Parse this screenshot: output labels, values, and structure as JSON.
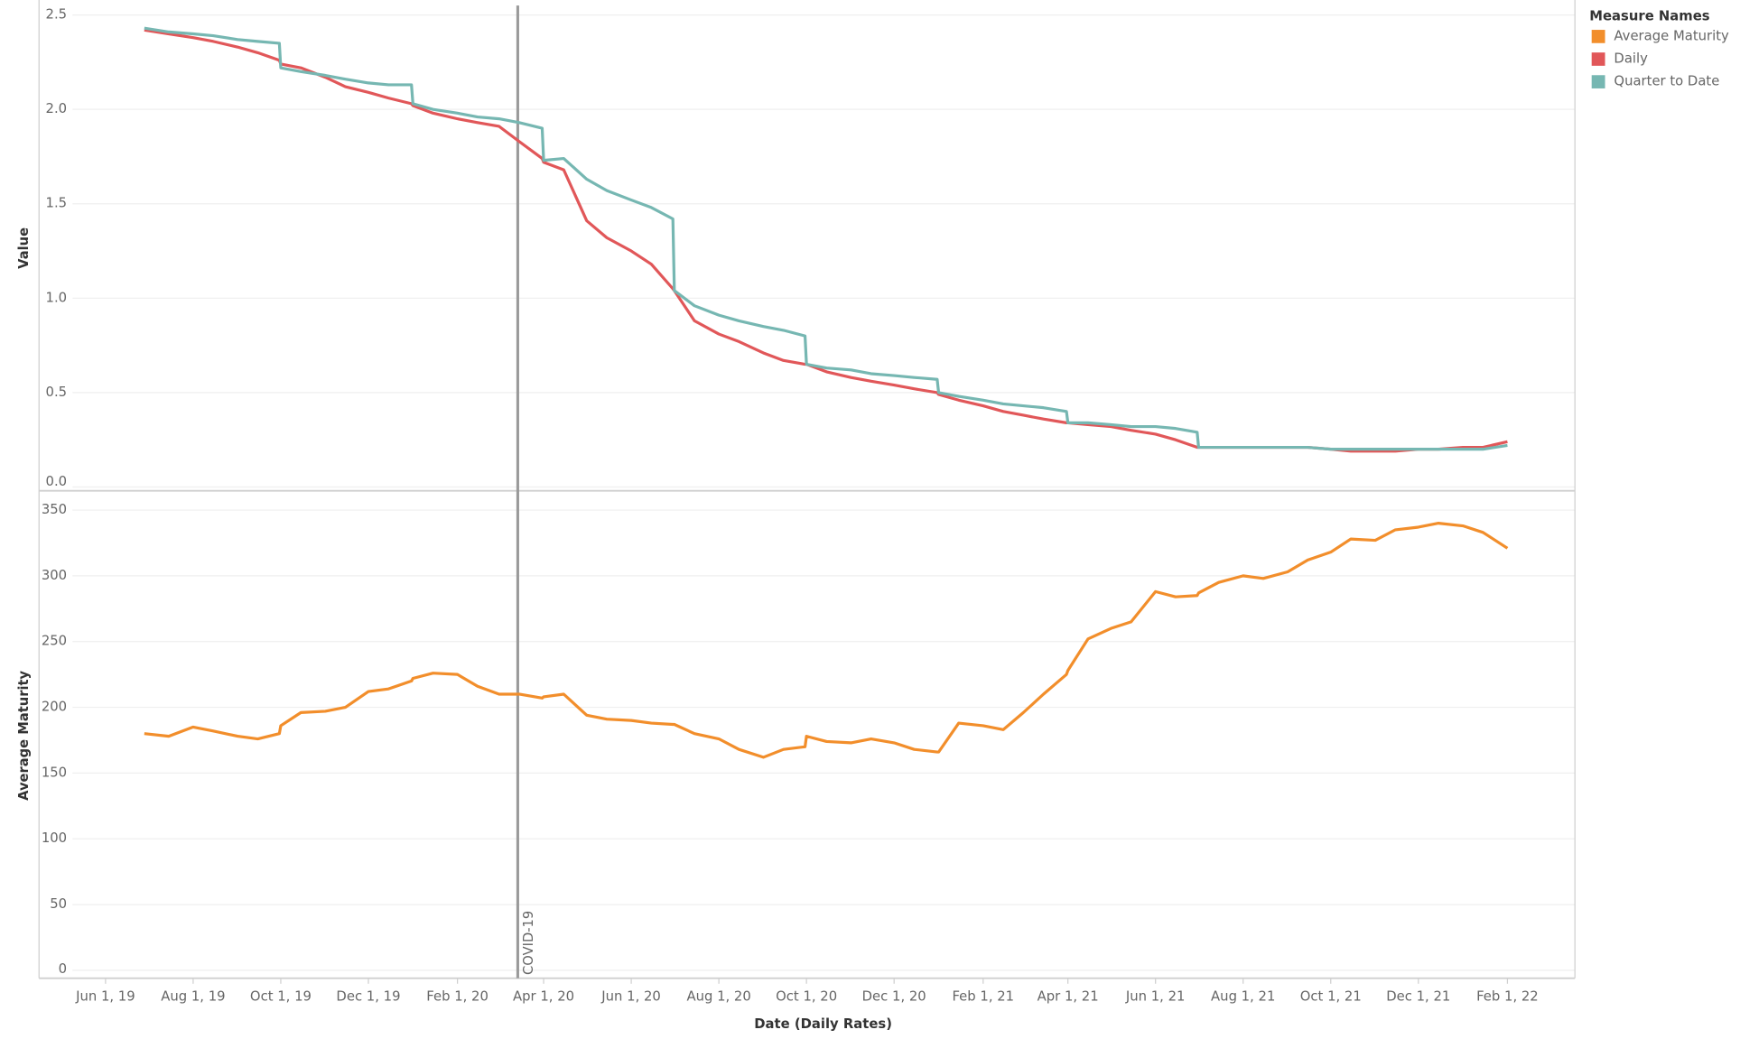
{
  "chart_data": {
    "type": "line",
    "x_label": "Date (Daily Rates)",
    "legend_title": "Measure Names",
    "xlim": [
      "2019-05-09",
      "2022-03-20"
    ],
    "xticks": [
      {
        "value": "2019-06-01",
        "label": "Jun 1, 19"
      },
      {
        "value": "2019-08-01",
        "label": "Aug 1, 19"
      },
      {
        "value": "2019-10-01",
        "label": "Oct 1, 19"
      },
      {
        "value": "2019-12-01",
        "label": "Dec 1, 19"
      },
      {
        "value": "2020-02-01",
        "label": "Feb 1, 20"
      },
      {
        "value": "2020-04-01",
        "label": "Apr 1, 20"
      },
      {
        "value": "2020-06-01",
        "label": "Jun 1, 20"
      },
      {
        "value": "2020-08-01",
        "label": "Aug 1, 20"
      },
      {
        "value": "2020-10-01",
        "label": "Oct 1, 20"
      },
      {
        "value": "2020-12-01",
        "label": "Dec 1, 20"
      },
      {
        "value": "2021-02-01",
        "label": "Feb 1, 21"
      },
      {
        "value": "2021-04-01",
        "label": "Apr 1, 21"
      },
      {
        "value": "2021-06-01",
        "label": "Jun 1, 21"
      },
      {
        "value": "2021-08-01",
        "label": "Aug 1, 21"
      },
      {
        "value": "2021-10-01",
        "label": "Oct 1, 21"
      },
      {
        "value": "2021-12-01",
        "label": "Dec 1, 21"
      },
      {
        "value": "2022-02-01",
        "label": "Feb 1, 22"
      }
    ],
    "annotations": [
      {
        "x": "2020-03-14",
        "text": "COVID-19"
      }
    ],
    "x": [
      "2019-06-28",
      "2019-07-15",
      "2019-08-01",
      "2019-08-15",
      "2019-09-01",
      "2019-09-15",
      "2019-09-30",
      "2019-10-01",
      "2019-10-15",
      "2019-11-01",
      "2019-11-15",
      "2019-12-01",
      "2019-12-15",
      "2019-12-31",
      "2020-01-01",
      "2020-01-15",
      "2020-02-01",
      "2020-02-15",
      "2020-03-01",
      "2020-03-15",
      "2020-03-31",
      "2020-04-01",
      "2020-04-15",
      "2020-05-01",
      "2020-05-15",
      "2020-06-01",
      "2020-06-15",
      "2020-06-30",
      "2020-07-01",
      "2020-07-15",
      "2020-08-01",
      "2020-08-15",
      "2020-09-01",
      "2020-09-15",
      "2020-09-30",
      "2020-10-01",
      "2020-10-15",
      "2020-11-01",
      "2020-11-15",
      "2020-12-01",
      "2020-12-15",
      "2020-12-31",
      "2021-01-01",
      "2021-01-15",
      "2021-02-01",
      "2021-02-15",
      "2021-03-01",
      "2021-03-15",
      "2021-03-31",
      "2021-04-01",
      "2021-04-15",
      "2021-05-01",
      "2021-05-15",
      "2021-06-01",
      "2021-06-15",
      "2021-06-30",
      "2021-07-01",
      "2021-07-15",
      "2021-08-01",
      "2021-08-15",
      "2021-09-01",
      "2021-09-15",
      "2021-10-01",
      "2021-10-15",
      "2021-11-01",
      "2021-11-15",
      "2021-12-01",
      "2021-12-15",
      "2022-01-01",
      "2022-01-15",
      "2022-02-01"
    ],
    "panes": [
      {
        "y_label": "Value",
        "ylim": [
          -0.02,
          2.55
        ],
        "yticks": [
          {
            "value": 0,
            "label": "0.0"
          },
          0.5,
          {
            "value": 1,
            "label": "1.0"
          },
          1.5,
          {
            "value": 2,
            "label": "2.0"
          },
          2.5
        ],
        "series": [
          {
            "name": "Daily",
            "color": "#e15759",
            "values": [
              2.42,
              2.4,
              2.38,
              2.36,
              2.33,
              2.3,
              2.26,
              2.24,
              2.22,
              2.17,
              2.12,
              2.09,
              2.06,
              2.03,
              2.02,
              1.98,
              1.95,
              1.93,
              1.91,
              1.83,
              1.74,
              1.72,
              1.68,
              1.41,
              1.32,
              1.25,
              1.18,
              1.05,
              1.04,
              0.88,
              0.81,
              0.77,
              0.71,
              0.67,
              0.65,
              0.65,
              0.61,
              0.58,
              0.56,
              0.54,
              0.52,
              0.5,
              0.49,
              0.46,
              0.43,
              0.4,
              0.38,
              0.36,
              0.34,
              0.34,
              0.33,
              0.32,
              0.3,
              0.28,
              0.25,
              0.21,
              0.21,
              0.21,
              0.21,
              0.21,
              0.21,
              0.21,
              0.2,
              0.19,
              0.19,
              0.19,
              0.2,
              0.2,
              0.21,
              0.21,
              0.24
            ]
          },
          {
            "name": "Quarter to Date",
            "color": "#76b7b2",
            "values": [
              2.43,
              2.41,
              2.4,
              2.39,
              2.37,
              2.36,
              2.35,
              2.22,
              2.2,
              2.18,
              2.16,
              2.14,
              2.13,
              2.13,
              2.03,
              2.0,
              1.98,
              1.96,
              1.95,
              1.93,
              1.9,
              1.73,
              1.74,
              1.63,
              1.57,
              1.52,
              1.48,
              1.42,
              1.04,
              0.96,
              0.91,
              0.88,
              0.85,
              0.83,
              0.8,
              0.65,
              0.63,
              0.62,
              0.6,
              0.59,
              0.58,
              0.57,
              0.5,
              0.48,
              0.46,
              0.44,
              0.43,
              0.42,
              0.4,
              0.34,
              0.34,
              0.33,
              0.32,
              0.32,
              0.31,
              0.29,
              0.21,
              0.21,
              0.21,
              0.21,
              0.21,
              0.21,
              0.2,
              0.2,
              0.2,
              0.2,
              0.2,
              0.2,
              0.2,
              0.2,
              0.22
            ]
          }
        ]
      },
      {
        "y_label": "Average Maturity",
        "ylim": [
          -6,
          363
        ],
        "yticks": [
          0,
          50,
          100,
          150,
          200,
          250,
          300,
          350
        ],
        "series": [
          {
            "name": "Average Maturity",
            "color": "#f28e2b",
            "values": [
              180,
              178,
              185,
              182,
              178,
              176,
              180,
              186,
              196,
              197,
              200,
              212,
              214,
              220,
              222,
              226,
              225,
              216,
              210,
              210,
              207,
              208,
              210,
              194,
              191,
              190,
              188,
              187,
              187,
              180,
              176,
              168,
              162,
              168,
              170,
              178,
              174,
              173,
              176,
              173,
              168,
              166,
              166,
              188,
              186,
              183,
              196,
              210,
              225,
              228,
              252,
              260,
              265,
              288,
              284,
              285,
              287,
              295,
              300,
              298,
              303,
              312,
              318,
              328,
              327,
              335,
              337,
              340,
              338,
              333,
              321
            ]
          }
        ]
      }
    ]
  }
}
